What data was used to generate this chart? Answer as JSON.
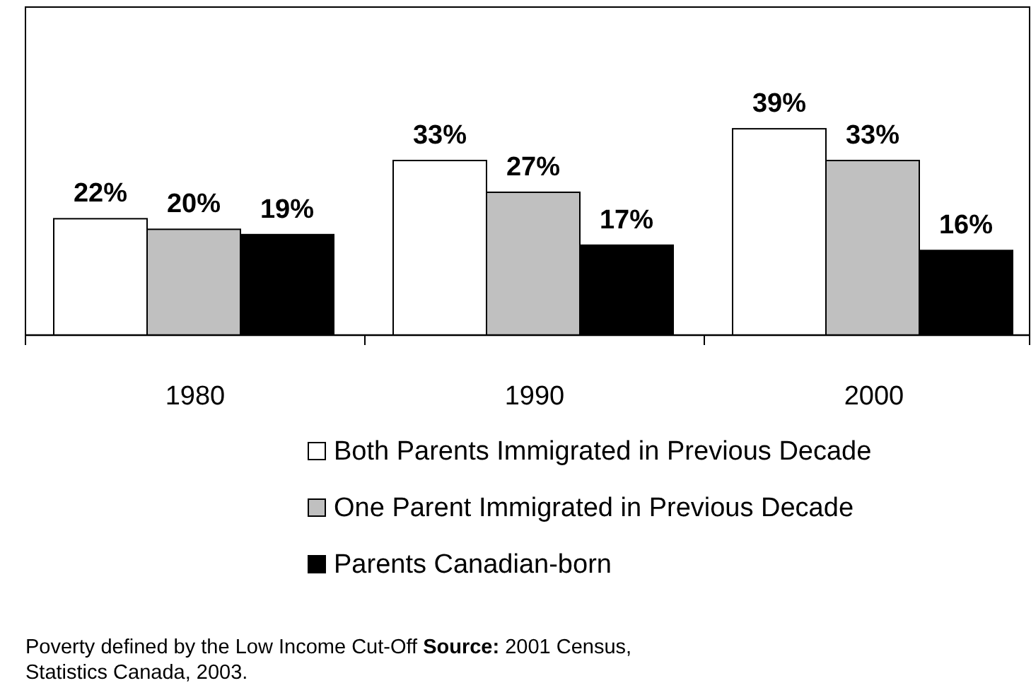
{
  "chart_data": {
    "type": "bar",
    "categories": [
      "1980",
      "1990",
      "2000"
    ],
    "series": [
      {
        "name": "Both Parents Immigrated in Previous Decade",
        "color": "#ffffff",
        "values": [
          22,
          33,
          39
        ],
        "value_labels": [
          "22%",
          "33%",
          "39%"
        ]
      },
      {
        "name": "One Parent Immigrated in Previous Decade",
        "color": "#c0c0c0",
        "values": [
          20,
          27,
          33
        ],
        "value_labels": [
          "20%",
          "27%",
          "33%"
        ]
      },
      {
        "name": "Parents Canadian-born",
        "color": "#000000",
        "values": [
          19,
          17,
          16
        ],
        "value_labels": [
          "19%",
          "17%",
          "16%"
        ]
      }
    ],
    "ylim": [
      0,
      62
    ],
    "legend": "bottom",
    "tick_labels": "x",
    "annotations": [
      "Poverty defined by the Low Income Cut-Off Source: 2001 Census, Statistics Canada, 2003."
    ]
  }
}
